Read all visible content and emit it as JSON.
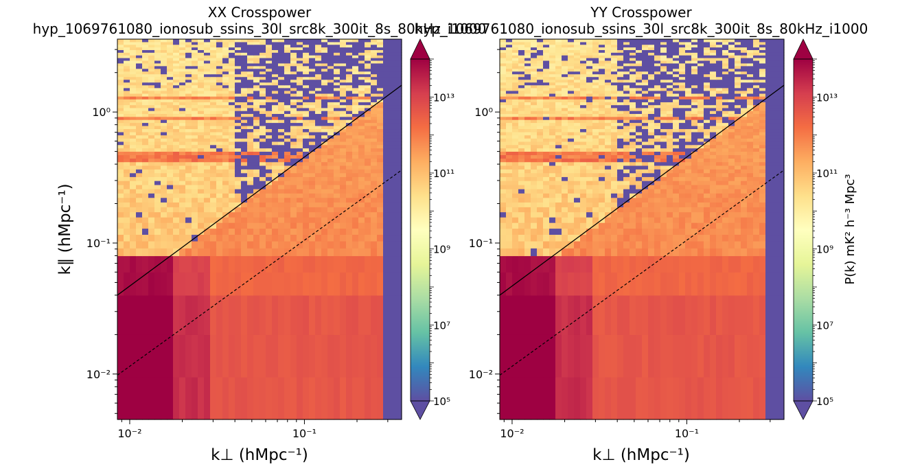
{
  "chart_data": [
    {
      "type": "heatmap",
      "title_line1": "XX Crosspower",
      "title_line2": "hyp_1069761080_ionosub_ssins_30l_src8k_300it_8s_80kHz_i1000",
      "xlabel": "k⊥ (hMpc⁻¹)",
      "ylabel": "k∥ (hMpc⁻¹)",
      "x_scale": "log",
      "y_scale": "log",
      "xlim": [
        0.0085,
        0.36
      ],
      "ylim": [
        0.0045,
        3.6
      ],
      "x_ticks": [
        {
          "value": 0.01,
          "label": "10⁻²"
        },
        {
          "value": 0.1,
          "label": "10⁻¹"
        }
      ],
      "y_ticks": [
        {
          "value": 0.01,
          "label": "10⁻²"
        },
        {
          "value": 0.1,
          "label": "10⁻¹"
        },
        {
          "value": 1,
          "label": "10⁰"
        }
      ],
      "horizon_line": {
        "style": "solid",
        "x": [
          0.0085,
          0.36
        ],
        "y": [
          0.04,
          1.6
        ]
      },
      "beam_line": {
        "style": "dashed",
        "x": [
          0.0085,
          0.36
        ],
        "y": [
          0.0098,
          0.36
        ]
      },
      "note": "log10 P(k) grid; purple cells are below range / negative"
    },
    {
      "type": "heatmap",
      "title_line1": "YY Crosspower",
      "title_line2": "hyp_1069761080_ionosub_ssins_30l_src8k_300it_8s_80kHz_i1000",
      "xlabel": "k⊥ (hMpc⁻¹)",
      "x_scale": "log",
      "y_scale": "log",
      "xlim": [
        0.0085,
        0.36
      ],
      "ylim": [
        0.0045,
        3.6
      ],
      "x_ticks": [
        {
          "value": 0.01,
          "label": "10⁻²"
        },
        {
          "value": 0.1,
          "label": "10⁻¹"
        }
      ],
      "y_ticks": [
        {
          "value": 0.01,
          "label": "10⁻²"
        },
        {
          "value": 0.1,
          "label": "10⁻¹"
        },
        {
          "value": 1,
          "label": "10⁰"
        }
      ],
      "horizon_line": {
        "style": "solid",
        "x": [
          0.0085,
          0.36
        ],
        "y": [
          0.04,
          1.6
        ]
      },
      "beam_line": {
        "style": "dashed",
        "x": [
          0.0085,
          0.36
        ],
        "y": [
          0.0098,
          0.36
        ]
      },
      "colorbar_label": "P(k) mK² h⁻³ Mpc³"
    }
  ],
  "colorbar": {
    "scale": "log",
    "range": [
      100000,
      100000000000000
    ],
    "ticks": [
      {
        "value": 100000,
        "label": "10⁵"
      },
      {
        "value": 10000000,
        "label": "10⁷"
      },
      {
        "value": 1000000000,
        "label": "10⁹"
      },
      {
        "value": 100000000000,
        "label": "10¹¹"
      },
      {
        "value": 10000000000000,
        "label": "10¹³"
      }
    ],
    "colormap": "Spectral_r",
    "extend": "both"
  }
}
